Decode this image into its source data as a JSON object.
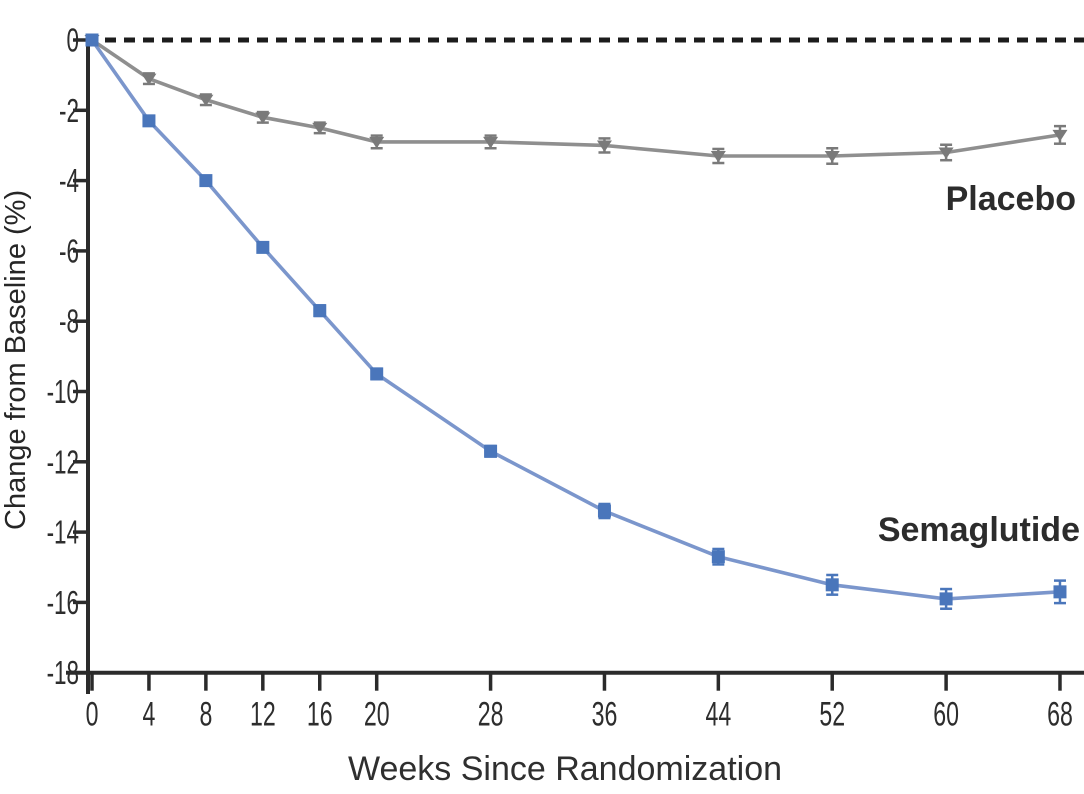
{
  "chart_data": {
    "type": "line",
    "title": "",
    "xlabel": "Weeks Since Randomization",
    "ylabel": "Change from Baseline (%)",
    "x": [
      0,
      4,
      8,
      12,
      16,
      20,
      28,
      36,
      44,
      52,
      60,
      68
    ],
    "xticks": [
      0,
      4,
      8,
      12,
      16,
      20,
      28,
      36,
      44,
      52,
      60,
      68
    ],
    "yticks": [
      0,
      -2,
      -4,
      -6,
      -8,
      -10,
      -12,
      -14,
      -16,
      -18
    ],
    "xlim": [
      0,
      69.7
    ],
    "ylim": [
      -18,
      0
    ],
    "grid": false,
    "legend_position": "inline-labels-right",
    "baseline": {
      "value": 0,
      "style": "dashed",
      "color": "#1c1c1c"
    },
    "axis_color": "#2b2b2b",
    "series": [
      {
        "name": "Placebo",
        "marker": "triangle-down",
        "line_color": "#8f8f8f",
        "marker_color": "#7a7a7a",
        "values": [
          0,
          -1.1,
          -1.7,
          -2.2,
          -2.5,
          -2.9,
          -2.9,
          -3.0,
          -3.3,
          -3.3,
          -3.2,
          -2.7
        ],
        "errors": [
          0.1,
          0.15,
          0.15,
          0.15,
          0.15,
          0.18,
          0.18,
          0.2,
          0.2,
          0.22,
          0.22,
          0.25
        ]
      },
      {
        "name": "Semaglutide",
        "marker": "square",
        "line_color": "#7b96cc",
        "marker_color": "#4a76bb",
        "values": [
          0,
          -2.3,
          -4.0,
          -5.9,
          -7.7,
          -9.5,
          -11.7,
          -13.4,
          -14.7,
          -15.5,
          -15.9,
          -15.7
        ],
        "errors": [
          0.1,
          0.1,
          0.1,
          0.12,
          0.15,
          0.15,
          0.15,
          0.2,
          0.22,
          0.28,
          0.28,
          0.32
        ]
      }
    ]
  }
}
